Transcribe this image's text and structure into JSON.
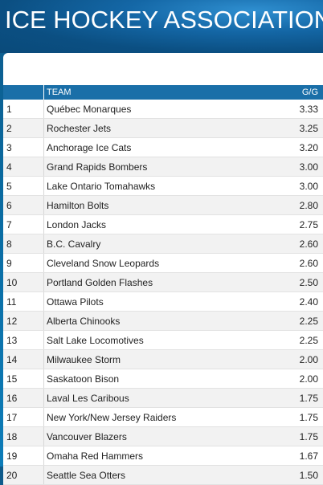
{
  "header": {
    "title": "ICE HOCKEY ASSOCIATION"
  },
  "table": {
    "columns": {
      "team": "TEAM",
      "gg": "G/G"
    },
    "rows": [
      {
        "rank": "1",
        "team": "Québec Monarques",
        "gg": "3.33"
      },
      {
        "rank": "2",
        "team": "Rochester Jets",
        "gg": "3.25"
      },
      {
        "rank": "3",
        "team": "Anchorage Ice Cats",
        "gg": "3.20"
      },
      {
        "rank": "4",
        "team": "Grand Rapids Bombers",
        "gg": "3.00"
      },
      {
        "rank": "5",
        "team": "Lake Ontario Tomahawks",
        "gg": "3.00"
      },
      {
        "rank": "6",
        "team": "Hamilton Bolts",
        "gg": "2.80"
      },
      {
        "rank": "7",
        "team": "London Jacks",
        "gg": "2.75"
      },
      {
        "rank": "8",
        "team": "B.C. Cavalry",
        "gg": "2.60"
      },
      {
        "rank": "9",
        "team": "Cleveland Snow Leopards",
        "gg": "2.60"
      },
      {
        "rank": "10",
        "team": "Portland Golden Flashes",
        "gg": "2.50"
      },
      {
        "rank": "11",
        "team": "Ottawa Pilots",
        "gg": "2.40"
      },
      {
        "rank": "12",
        "team": "Alberta Chinooks",
        "gg": "2.25"
      },
      {
        "rank": "13",
        "team": "Salt Lake Locomotives",
        "gg": "2.25"
      },
      {
        "rank": "14",
        "team": "Milwaukee Storm",
        "gg": "2.00"
      },
      {
        "rank": "15",
        "team": "Saskatoon Bison",
        "gg": "2.00"
      },
      {
        "rank": "16",
        "team": "Laval Les Caribous",
        "gg": "1.75"
      },
      {
        "rank": "17",
        "team": "New York/New Jersey Raiders",
        "gg": "1.75"
      },
      {
        "rank": "18",
        "team": "Vancouver Blazers",
        "gg": "1.75"
      },
      {
        "rank": "19",
        "team": "Omaha Red Hammers",
        "gg": "1.67"
      },
      {
        "rank": "20",
        "team": "Seattle Sea Otters",
        "gg": "1.50"
      }
    ]
  }
}
